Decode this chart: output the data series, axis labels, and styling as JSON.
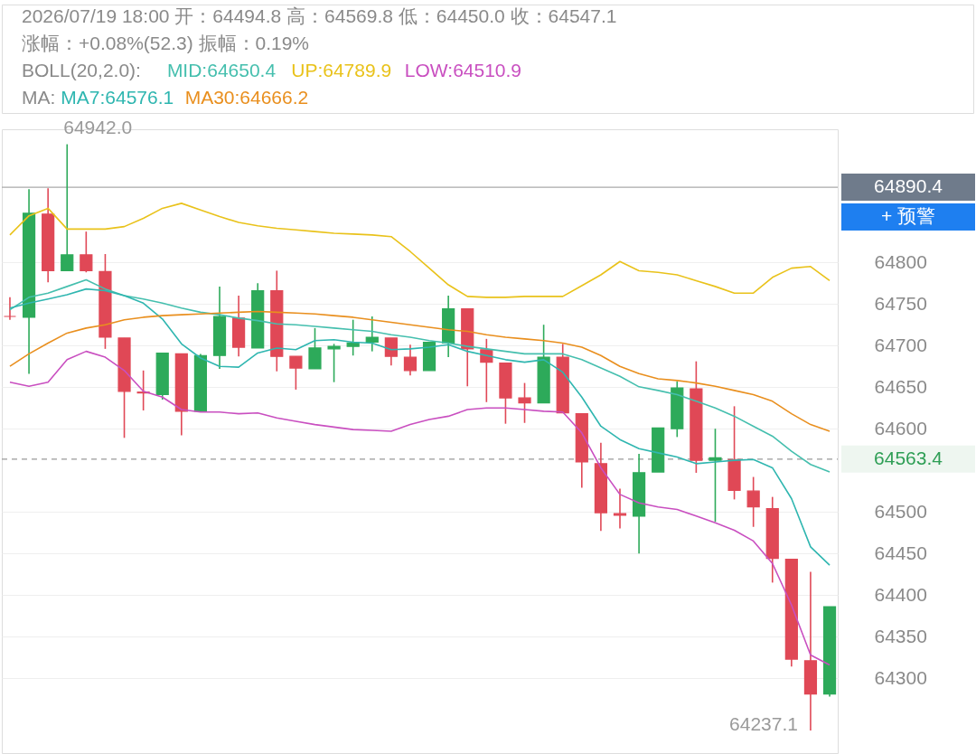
{
  "chart_data": {
    "type": "candlestick",
    "title": "2026/07/19 18:00 开：64494.8 高：64569.8 低：64450.0 收：64547.1",
    "subtitle": "涨幅：+0.08%(52.3) 振幅：0.19%",
    "categories": [
      null,
      null,
      null,
      null,
      null,
      null,
      null,
      null,
      null,
      null,
      null,
      null,
      null,
      null,
      null,
      null,
      null,
      null,
      null,
      null,
      null,
      null,
      null,
      null,
      null,
      null,
      null,
      null,
      null,
      null,
      null,
      null,
      null,
      null,
      null,
      null,
      null,
      null,
      null,
      null,
      null,
      null,
      null,
      null
    ],
    "ohlc": [
      [
        64735,
        64758,
        64731,
        64735
      ],
      [
        64734,
        64888,
        64666,
        64859
      ],
      [
        64858,
        64889,
        64776,
        64790
      ],
      [
        64790,
        64942.0,
        64790,
        64809
      ],
      [
        64809,
        64837,
        64788,
        64790
      ],
      [
        64789,
        64810,
        64696,
        64710
      ],
      [
        64709,
        64709,
        64589,
        64645
      ],
      [
        64644,
        64670,
        64622,
        64643
      ],
      [
        64641,
        64691,
        64635,
        64691
      ],
      [
        64690,
        64690,
        64592,
        64621
      ],
      [
        64621,
        64690,
        64621,
        64688
      ],
      [
        64688,
        64771,
        64672,
        64735
      ],
      [
        64733,
        64760,
        64687,
        64698
      ],
      [
        64697,
        64775,
        64697,
        64766
      ],
      [
        64766,
        64790,
        64669,
        64687
      ],
      [
        64687,
        64687,
        64647,
        64673
      ],
      [
        64672,
        64721,
        64672,
        64697
      ],
      [
        64696,
        64702,
        64656,
        64699
      ],
      [
        64699,
        64731,
        64688,
        64703
      ],
      [
        64704,
        64735,
        64693,
        64710
      ],
      [
        64709,
        64709,
        64676,
        64687
      ],
      [
        64686,
        64701,
        64664,
        64670
      ],
      [
        64670,
        64704,
        64670,
        64704
      ],
      [
        64703,
        64760,
        64686,
        64744
      ],
      [
        64744,
        64744,
        64651,
        64696
      ],
      [
        64695,
        64708,
        64632,
        64680
      ],
      [
        64679,
        64679,
        64606,
        64637
      ],
      [
        64637,
        64655,
        64607,
        64631
      ],
      [
        64631,
        64725,
        64631,
        64686
      ],
      [
        64686,
        64702,
        64619,
        64619
      ],
      [
        64618,
        64618,
        64529,
        64560
      ],
      [
        64558,
        64583,
        64477,
        64499
      ],
      [
        64498,
        64528,
        64480,
        64496
      ],
      [
        64494.8,
        64569.8,
        64450.0,
        64547.1
      ],
      [
        64548,
        64601,
        64548,
        64601
      ],
      [
        64600,
        64657,
        64590,
        64649
      ],
      [
        64648,
        64681,
        64547,
        64562
      ],
      [
        64562,
        64600,
        64488,
        64565
      ],
      [
        64563,
        64627,
        64515,
        64526
      ],
      [
        64525,
        64542,
        64482,
        64506
      ],
      [
        64504,
        64518,
        64415,
        64444
      ],
      [
        64443,
        64443,
        64314,
        64323
      ],
      [
        64321,
        64428,
        64237.1,
        64281
      ],
      [
        64281,
        64386,
        64278,
        64386
      ]
    ],
    "colors": [
      "#e04856",
      "#2daa5a",
      "#e04856",
      "#2daa5a",
      "#e04856",
      "#e04856",
      "#e04856",
      "#e04856",
      "#2daa5a",
      "#e04856",
      "#2daa5a",
      "#2daa5a",
      "#e04856",
      "#2daa5a",
      "#e04856",
      "#e04856",
      "#2daa5a",
      "#2daa5a",
      "#2daa5a",
      "#2daa5a",
      "#e04856",
      "#e04856",
      "#2daa5a",
      "#2daa5a",
      "#e04856",
      "#e04856",
      "#e04856",
      "#e04856",
      "#2daa5a",
      "#e04856",
      "#e04856",
      "#e04856",
      "#e04856",
      "#2daa5a",
      "#2daa5a",
      "#2daa5a",
      "#e04856",
      "#2daa5a",
      "#e04856",
      "#e04856",
      "#e04856",
      "#e04856",
      "#e04856",
      "#2daa5a"
    ],
    "series": [
      {
        "name": "MID:64650.4",
        "type": "line",
        "color": "#45bfae",
        "values": [
          64743,
          64758,
          64763,
          64771,
          64779,
          64768,
          64760,
          64756,
          64751,
          64745,
          64740,
          64737,
          64733,
          64730,
          64726,
          64725,
          64723,
          64721,
          64719,
          64717,
          64713,
          64710,
          64706,
          64703,
          64699,
          64696,
          64693,
          64690,
          64690,
          64690,
          64683,
          64673,
          64663,
          64650.4,
          64646,
          64641,
          64633,
          64625,
          64615,
          64603,
          64591,
          64573,
          64557,
          64548
        ]
      },
      {
        "name": "UP:64789.9",
        "type": "line",
        "color": "#e9c21a",
        "values": [
          64833,
          64856,
          64865,
          64840,
          64840,
          64840,
          64843,
          64853,
          64865,
          64871,
          64863,
          64855,
          64848,
          64844,
          64841,
          64839,
          64837,
          64835,
          64834,
          64833,
          64831,
          64813,
          64793,
          64773,
          64759,
          64758,
          64758,
          64759,
          64759,
          64759,
          64772,
          64785,
          64801,
          64789.9,
          64788,
          64785,
          64778,
          64771,
          64763,
          64763,
          64782,
          64793,
          64795,
          64778
        ]
      },
      {
        "name": "LOW:64510.9",
        "type": "line",
        "color": "#c94fc0",
        "values": [
          64656,
          64651,
          64656,
          64683,
          64693,
          64686,
          64670,
          64645,
          64638,
          64623,
          64620,
          64620,
          64618,
          64619,
          64613,
          64609,
          64605,
          64602,
          64599,
          64598,
          64597,
          64605,
          64611,
          64615,
          64623,
          64625,
          64625,
          64623,
          64621,
          64620,
          64595,
          64553,
          64521,
          64510.9,
          64506,
          64503,
          64495,
          64487,
          64478,
          64465,
          64438,
          64388,
          64328,
          64316
        ]
      },
      {
        "name": "MA7:64576.1",
        "type": "line",
        "color": "#2fb6b0",
        "values": [
          64745,
          64751,
          64756,
          64761,
          64768,
          64766,
          64760,
          64751,
          64732,
          64702,
          64685,
          64675,
          64674,
          64691,
          64697,
          64695,
          64706,
          64707,
          64704,
          64703,
          64695,
          64696,
          64698,
          64701,
          64693,
          64688,
          64683,
          64680,
          64683,
          64668,
          64638,
          64603,
          64587,
          64576.1,
          64571,
          64566,
          64558,
          64560,
          64562,
          64563,
          64553,
          64516,
          64458,
          64436
        ]
      },
      {
        "name": "MA30:64666.2",
        "type": "line",
        "color": "#e98f1e",
        "values": [
          64675,
          64690,
          64703,
          64715,
          64721,
          64725,
          64731,
          64734,
          64736,
          64737,
          64738,
          64739,
          64740,
          64741,
          64740,
          64739,
          64738,
          64736,
          64734,
          64731,
          64728,
          64725,
          64722,
          64719,
          64717,
          64713,
          64710,
          64708,
          64706,
          64703,
          64698,
          64688,
          64675,
          64666.2,
          64660,
          64658,
          64655,
          64651,
          64646,
          64641,
          64633,
          64618,
          64605,
          64597
        ]
      }
    ],
    "ylim": [
      64210,
      64960
    ],
    "yticks": [
      64300,
      64350,
      64400,
      64450,
      64500,
      64600,
      64650,
      64700,
      64750,
      64800
    ],
    "grid": "y",
    "legend": "top",
    "tick_labels": "y",
    "ref_lines": [
      {
        "axis": "y",
        "value": 64890.4,
        "label": "64890.4",
        "color": "#aaaaaa",
        "line_style": "solid"
      },
      {
        "axis": "y",
        "value": 64563.4,
        "label": "64563.4",
        "color": "#999999",
        "line_style": "dashed"
      }
    ],
    "annotations": [
      "BOLL(20,2.0):",
      "MA:",
      "64942.0",
      "64237.1",
      "+ 预警"
    ]
  }
}
